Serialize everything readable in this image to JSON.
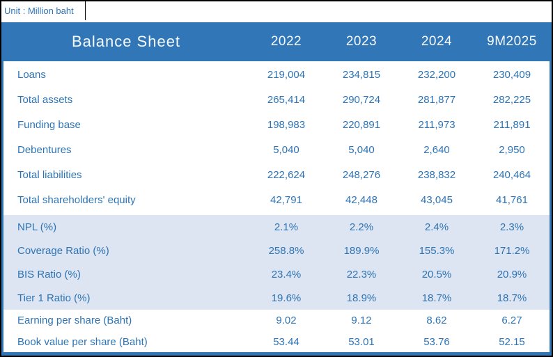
{
  "unit_label": "Unit : Million baht",
  "table": {
    "title": "Balance Sheet",
    "columns": [
      "2022",
      "2023",
      "2024",
      "9M2025"
    ],
    "sections": [
      {
        "id": "balance",
        "rows": [
          {
            "label": "Loans",
            "values": [
              "219,004",
              "234,815",
              "232,200",
              "230,409"
            ]
          },
          {
            "label": "Total assets",
            "values": [
              "265,414",
              "290,724",
              "281,877",
              "282,225"
            ]
          },
          {
            "label": "Funding base",
            "values": [
              "198,983",
              "220,891",
              "211,973",
              "211,891"
            ]
          },
          {
            "label": "Debentures",
            "values": [
              "5,040",
              "5,040",
              "2,640",
              "2,950"
            ]
          },
          {
            "label": "Total liabilities",
            "values": [
              "222,624",
              "248,276",
              "238,832",
              "240,464"
            ]
          },
          {
            "label": "Total shareholders' equity",
            "values": [
              "42,791",
              "42,448",
              "43,045",
              "41,761"
            ]
          }
        ]
      },
      {
        "id": "ratios",
        "rows": [
          {
            "label": "NPL (%)",
            "values": [
              "2.1%",
              "2.2%",
              "2.4%",
              "2.3%"
            ]
          },
          {
            "label": "Coverage Ratio (%)",
            "values": [
              "258.8%",
              "189.9%",
              "155.3%",
              "171.2%"
            ]
          },
          {
            "label": "BIS Ratio (%)",
            "values": [
              "23.4%",
              "22.3%",
              "20.5%",
              "20.9%"
            ]
          },
          {
            "label": "Tier 1 Ratio (%)",
            "values": [
              "19.6%",
              "18.9%",
              "18.7%",
              "18.7%"
            ]
          }
        ]
      },
      {
        "id": "pershare",
        "rows": [
          {
            "label": "Earning per share (Baht)",
            "values": [
              "9.02",
              "9.12",
              "8.62",
              "6.27"
            ]
          },
          {
            "label": "Book value per share (Baht)",
            "values": [
              "53.44",
              "53.01",
              "53.76",
              "52.15"
            ]
          }
        ]
      }
    ]
  },
  "colors": {
    "header_bg": "#3176B7",
    "band_bg": "#DCE5F1",
    "text_blue": "#2E74B5",
    "frame": "#000000"
  }
}
